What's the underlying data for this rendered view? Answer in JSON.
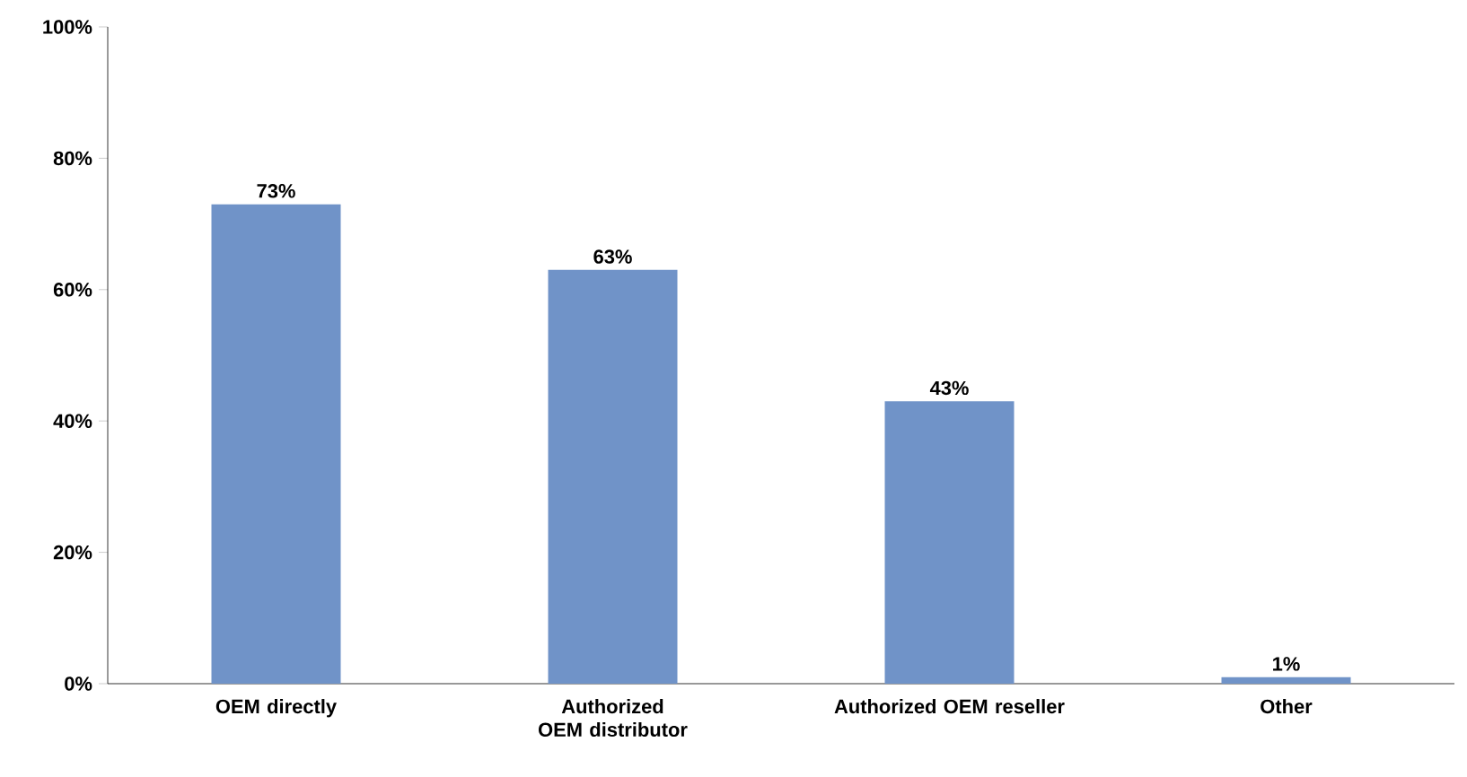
{
  "chart_data": {
    "type": "bar",
    "categories": [
      "OEM directly",
      "Authorized OEM distributor",
      "Authorized OEM reseller",
      "Other"
    ],
    "values": [
      73,
      63,
      43,
      1
    ],
    "value_labels": [
      "73%",
      "63%",
      "43%",
      "1%"
    ],
    "color": "#7093c8",
    "ylim": [
      0,
      100
    ],
    "yticks": [
      {
        "value": 0,
        "label": "0%"
      },
      {
        "value": 20,
        "label": "20%"
      },
      {
        "value": 40,
        "label": "40%"
      },
      {
        "value": 60,
        "label": "60%"
      },
      {
        "value": 80,
        "label": "80%"
      },
      {
        "value": 100,
        "label": "100%"
      }
    ]
  }
}
